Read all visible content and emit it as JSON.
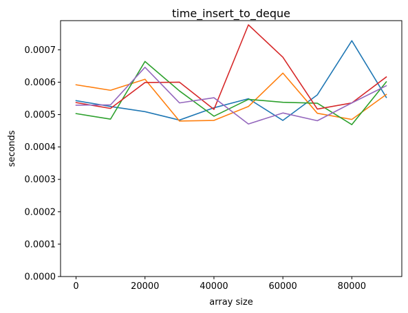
{
  "chart_data": {
    "type": "line",
    "title": "time_insert_to_deque",
    "xlabel": "array size",
    "ylabel": "seconds",
    "x": [
      0,
      10000,
      20000,
      30000,
      40000,
      50000,
      60000,
      70000,
      80000,
      90000
    ],
    "xlim": [
      -4500,
      94500
    ],
    "ylim": [
      0,
      0.00079
    ],
    "xticks": [
      0,
      20000,
      40000,
      60000,
      80000
    ],
    "xtick_labels": [
      "0",
      "20000",
      "40000",
      "60000",
      "80000"
    ],
    "yticks": [
      0,
      0.0001,
      0.0002,
      0.0003,
      0.0004,
      0.0005,
      0.0006,
      0.0007
    ],
    "ytick_labels": [
      "0.0000",
      "0.0001",
      "0.0002",
      "0.0003",
      "0.0004",
      "0.0005",
      "0.0006",
      "0.0007"
    ],
    "grid": false,
    "legend": false,
    "series": [
      {
        "color": "#1f77b4",
        "values": [
          0.000543,
          0.000525,
          0.000509,
          0.000483,
          0.000521,
          0.000549,
          0.000482,
          0.000561,
          0.000728,
          0.000553
        ]
      },
      {
        "color": "#ff7f0e",
        "values": [
          0.000592,
          0.000575,
          0.000609,
          0.00048,
          0.000482,
          0.000525,
          0.000628,
          0.000504,
          0.000485,
          0.000562
        ]
      },
      {
        "color": "#2ca02c",
        "values": [
          0.000503,
          0.000486,
          0.000664,
          0.000573,
          0.000495,
          0.000547,
          0.000538,
          0.000535,
          0.000469,
          0.000601
        ]
      },
      {
        "color": "#d62728",
        "values": [
          0.000537,
          0.000519,
          0.000599,
          0.0006,
          0.000516,
          0.000777,
          0.000677,
          0.000517,
          0.000536,
          0.000616
        ]
      },
      {
        "color": "#9467bd",
        "values": [
          0.000529,
          0.00053,
          0.000646,
          0.000536,
          0.000552,
          0.000471,
          0.000505,
          0.000481,
          0.000536,
          0.000589
        ]
      }
    ]
  }
}
